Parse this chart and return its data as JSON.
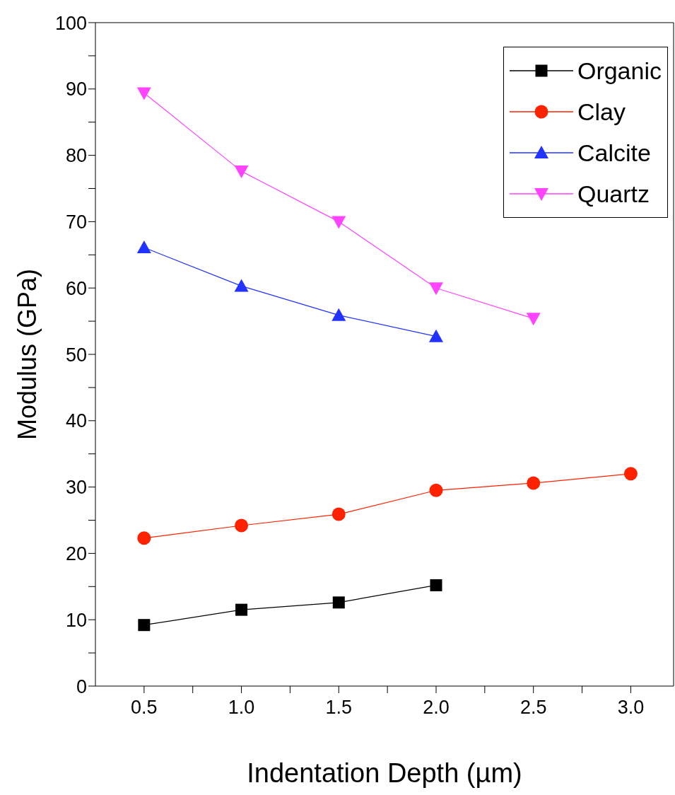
{
  "chart_data": {
    "type": "line",
    "xlabel": "Indentation Depth (µm)",
    "ylabel": "Modulus (GPa)",
    "xlim": [
      0.25,
      3.22
    ],
    "ylim": [
      0,
      100
    ],
    "xticks": [
      {
        "value": 0.5,
        "label": "0.5"
      },
      {
        "value": 0.75,
        "label": null
      },
      {
        "value": 1,
        "label": "1.0"
      },
      {
        "value": 1.25,
        "label": null
      },
      {
        "value": 1.5,
        "label": "1.5"
      },
      {
        "value": 1.75,
        "label": null
      },
      {
        "value": 2,
        "label": "2.0"
      },
      {
        "value": 2.25,
        "label": null
      },
      {
        "value": 2.5,
        "label": "2.5"
      },
      {
        "value": 2.75,
        "label": null
      },
      {
        "value": 3,
        "label": "3.0"
      }
    ],
    "yticks": [
      0,
      {
        "value": 5,
        "label": null
      },
      10,
      {
        "value": 15,
        "label": null
      },
      20,
      {
        "value": 25,
        "label": null
      },
      30,
      {
        "value": 35,
        "label": null
      },
      40,
      {
        "value": 45,
        "label": null
      },
      50,
      {
        "value": 55,
        "label": null
      },
      60,
      {
        "value": 65,
        "label": null
      },
      70,
      {
        "value": 75,
        "label": null
      },
      80,
      {
        "value": 85,
        "label": null
      },
      90,
      {
        "value": 95,
        "label": null
      },
      100
    ],
    "legend": "top right",
    "line_style": "solid",
    "series": [
      {
        "name": "Organic",
        "color": "#000000",
        "marker": "square",
        "x": [
          0.5,
          1,
          1.5,
          2
        ],
        "values": [
          9.2,
          11.5,
          12.6,
          15.2
        ]
      },
      {
        "name": "Clay",
        "color": "#ff2200",
        "marker": "circle",
        "x": [
          0.5,
          1,
          1.5,
          2,
          2.5,
          3
        ],
        "values": [
          22.3,
          24.2,
          25.9,
          29.5,
          30.6,
          32.0
        ]
      },
      {
        "name": "Calcite",
        "color": "#2233ff",
        "marker": "triangle",
        "x": [
          0.5,
          1,
          1.5,
          2
        ],
        "values": [
          66.1,
          60.3,
          55.9,
          52.7
        ]
      },
      {
        "name": "Quartz",
        "color": "#ff44ff",
        "marker": "triangle-down",
        "x": [
          0.5,
          1,
          1.5,
          2,
          2.5
        ],
        "values": [
          89.4,
          77.6,
          70.0,
          60.0,
          55.4
        ]
      }
    ]
  }
}
